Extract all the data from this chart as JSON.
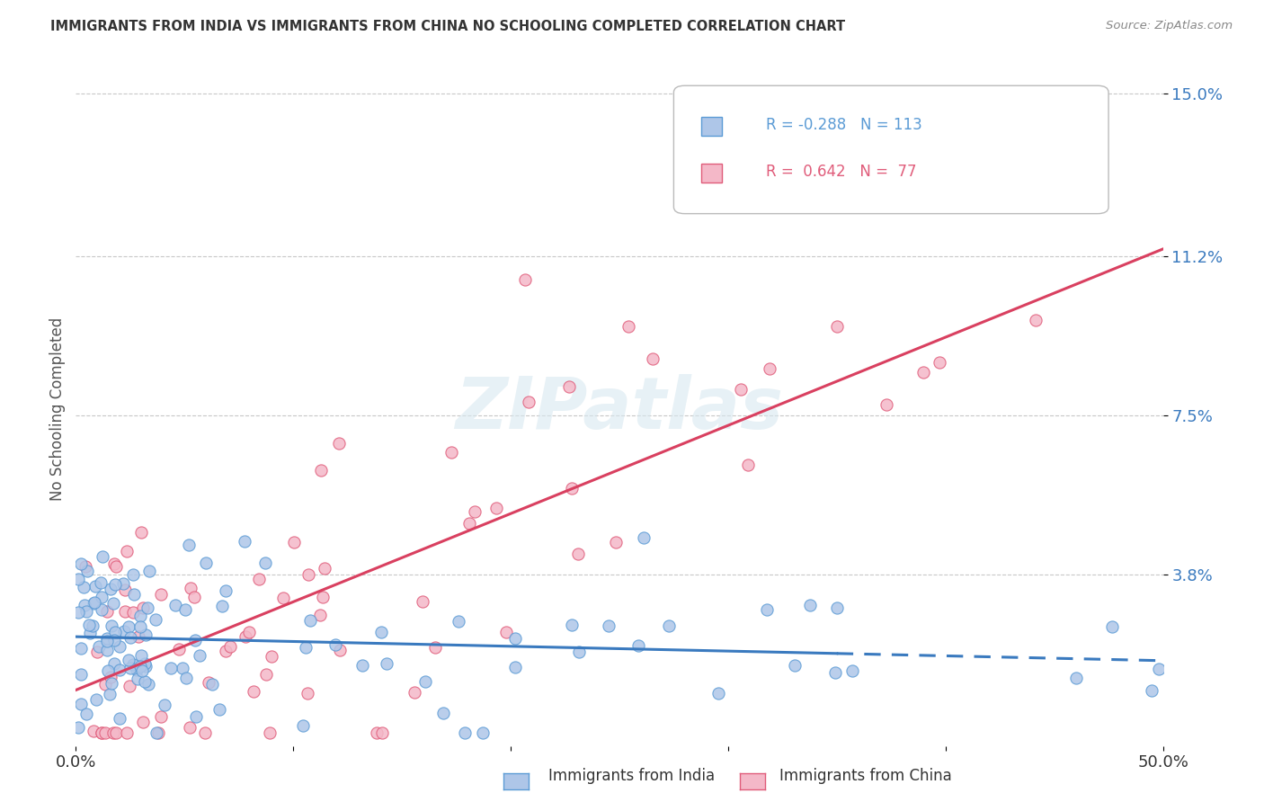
{
  "title": "IMMIGRANTS FROM INDIA VS IMMIGRANTS FROM CHINA NO SCHOOLING COMPLETED CORRELATION CHART",
  "source": "Source: ZipAtlas.com",
  "ylabel": "No Schooling Completed",
  "xlim": [
    0.0,
    0.5
  ],
  "ylim": [
    -0.002,
    0.155
  ],
  "ytick_vals": [
    0.038,
    0.075,
    0.112,
    0.15
  ],
  "ytick_labels": [
    "3.8%",
    "7.5%",
    "11.2%",
    "15.0%"
  ],
  "xtick_vals": [
    0.0,
    0.1,
    0.2,
    0.3,
    0.4,
    0.5
  ],
  "xtick_labels": [
    "0.0%",
    "",
    "",
    "",
    "",
    "50.0%"
  ],
  "india_fill": "#aec6e8",
  "india_edge": "#5b9bd5",
  "china_fill": "#f4b8c8",
  "china_edge": "#e05c7a",
  "india_line_color": "#3a7abf",
  "china_line_color": "#d94060",
  "india_R": "-0.288",
  "india_N": "113",
  "china_R": "0.642",
  "china_N": "77",
  "watermark": "ZIPatlas",
  "background_color": "#ffffff",
  "grid_color": "#c8c8c8",
  "title_color": "#333333",
  "source_color": "#888888",
  "ytick_color": "#3a7abf",
  "xtick_color": "#333333"
}
